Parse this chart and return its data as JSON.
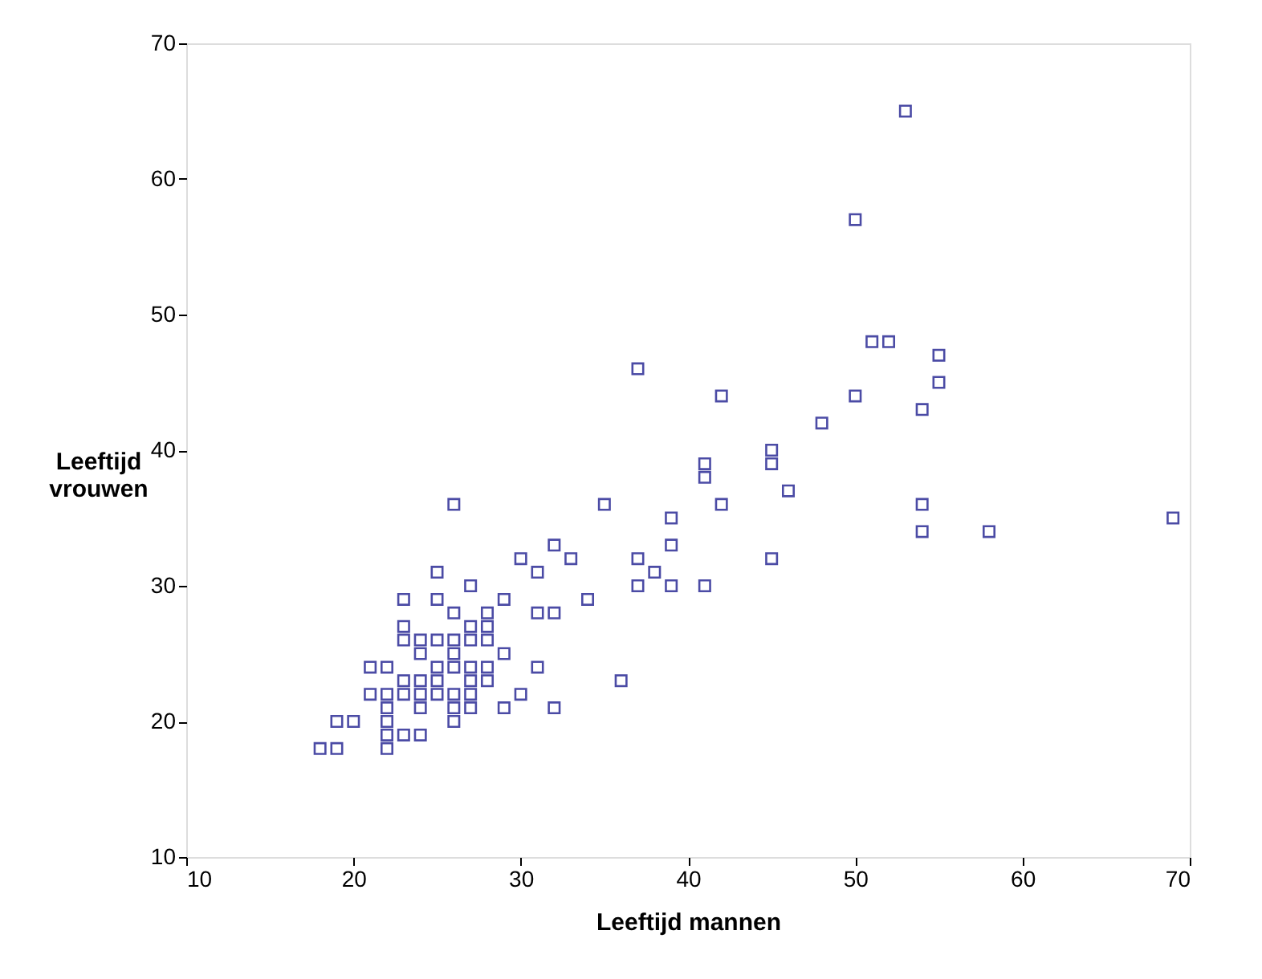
{
  "chart_data": {
    "type": "scatter",
    "xlabel": "Leeftijd mannen",
    "ylabel": "Leeftijd vrouwen",
    "x": [
      18,
      19,
      19,
      20,
      21,
      21,
      22,
      22,
      22,
      22,
      22,
      22,
      23,
      23,
      23,
      23,
      23,
      23,
      24,
      24,
      24,
      24,
      24,
      24,
      25,
      25,
      25,
      25,
      25,
      25,
      26,
      26,
      26,
      26,
      26,
      26,
      26,
      26,
      27,
      27,
      27,
      27,
      27,
      27,
      27,
      28,
      28,
      28,
      28,
      28,
      29,
      29,
      29,
      30,
      30,
      31,
      31,
      31,
      32,
      32,
      32,
      33,
      34,
      35,
      36,
      37,
      37,
      37,
      38,
      39,
      39,
      39,
      41,
      41,
      41,
      42,
      42,
      45,
      45,
      45,
      46,
      48,
      50,
      50,
      51,
      52,
      53,
      54,
      54,
      54,
      55,
      55,
      58,
      69
    ],
    "series": [
      {
        "color": "#000080",
        "values": [
          18,
          18,
          20,
          20,
          22,
          24,
          24,
          22,
          21,
          20,
          19,
          18,
          29,
          27,
          26,
          23,
          22,
          19,
          26,
          25,
          23,
          22,
          21,
          19,
          31,
          29,
          26,
          24,
          23,
          22,
          36,
          28,
          26,
          25,
          24,
          22,
          21,
          20,
          30,
          27,
          26,
          24,
          23,
          22,
          21,
          28,
          27,
          26,
          24,
          23,
          29,
          25,
          21,
          32,
          22,
          31,
          28,
          24,
          33,
          28,
          21,
          32,
          29,
          36,
          23,
          46,
          32,
          30,
          31,
          35,
          33,
          30,
          39,
          38,
          30,
          44,
          36,
          40,
          39,
          32,
          37,
          42,
          57,
          44,
          48,
          48,
          65,
          43,
          36,
          34,
          47,
          45,
          34,
          35
        ]
      }
    ],
    "xlim": [
      10,
      70
    ],
    "ylim": [
      10,
      70
    ],
    "xticks": [
      10,
      20,
      30,
      40,
      50,
      60,
      70
    ],
    "yticks": [
      10,
      20,
      30,
      40,
      50,
      60,
      70
    ],
    "marker": "square",
    "grid": false,
    "legend": false
  }
}
